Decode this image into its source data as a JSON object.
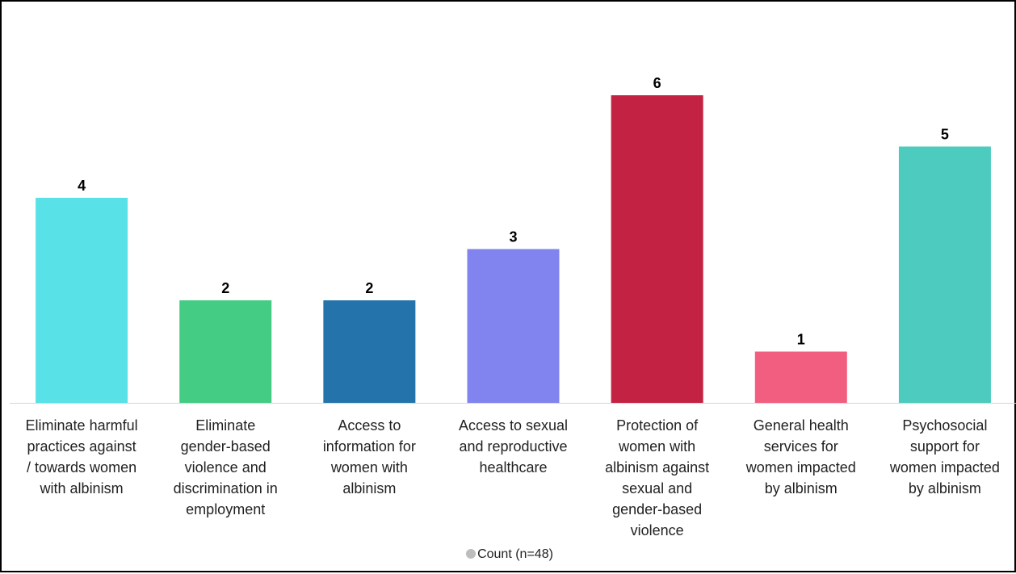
{
  "chart_data": {
    "type": "bar",
    "categories": [
      "Eliminate harmful practices against / towards women with albinism",
      "Eliminate gender-based violence and discrimination in employment",
      "Access to information for women with albinism",
      "Access to sexual and reproductive healthcare",
      "Protection of women with albinism against sexual and gender-based violence",
      "General health services for women impacted by albinism",
      "Psychosocial support for women impacted by albinism"
    ],
    "label_lines": [
      [
        "Eliminate harmful",
        "practices against",
        "/ towards women",
        "with albinism"
      ],
      [
        "Eliminate",
        "gender-based",
        "violence and",
        "discrimination in",
        "employment"
      ],
      [
        "Access to",
        "information for",
        "women with",
        "albinism"
      ],
      [
        "Access to sexual",
        "and reproductive",
        "healthcare"
      ],
      [
        "Protection of",
        "women with",
        "albinism against",
        "sexual and",
        "gender-based",
        "violence"
      ],
      [
        "General health",
        "services for",
        "women impacted",
        "by albinism"
      ],
      [
        "Psychosocial",
        "support for",
        "women impacted",
        "by albinism"
      ]
    ],
    "series": [
      {
        "name": "Count (n=48)",
        "values": [
          4,
          2,
          2,
          3,
          6,
          1,
          5
        ]
      }
    ],
    "colors": [
      "#58e1e6",
      "#44cc84",
      "#2474ab",
      "#8184ee",
      "#c42242",
      "#f25e7f",
      "#4dcbbe"
    ],
    "ylim": [
      0,
      6
    ],
    "grid": false,
    "legend_placement": "bottom-center",
    "legend_marker_color": "#bdbdbd"
  }
}
